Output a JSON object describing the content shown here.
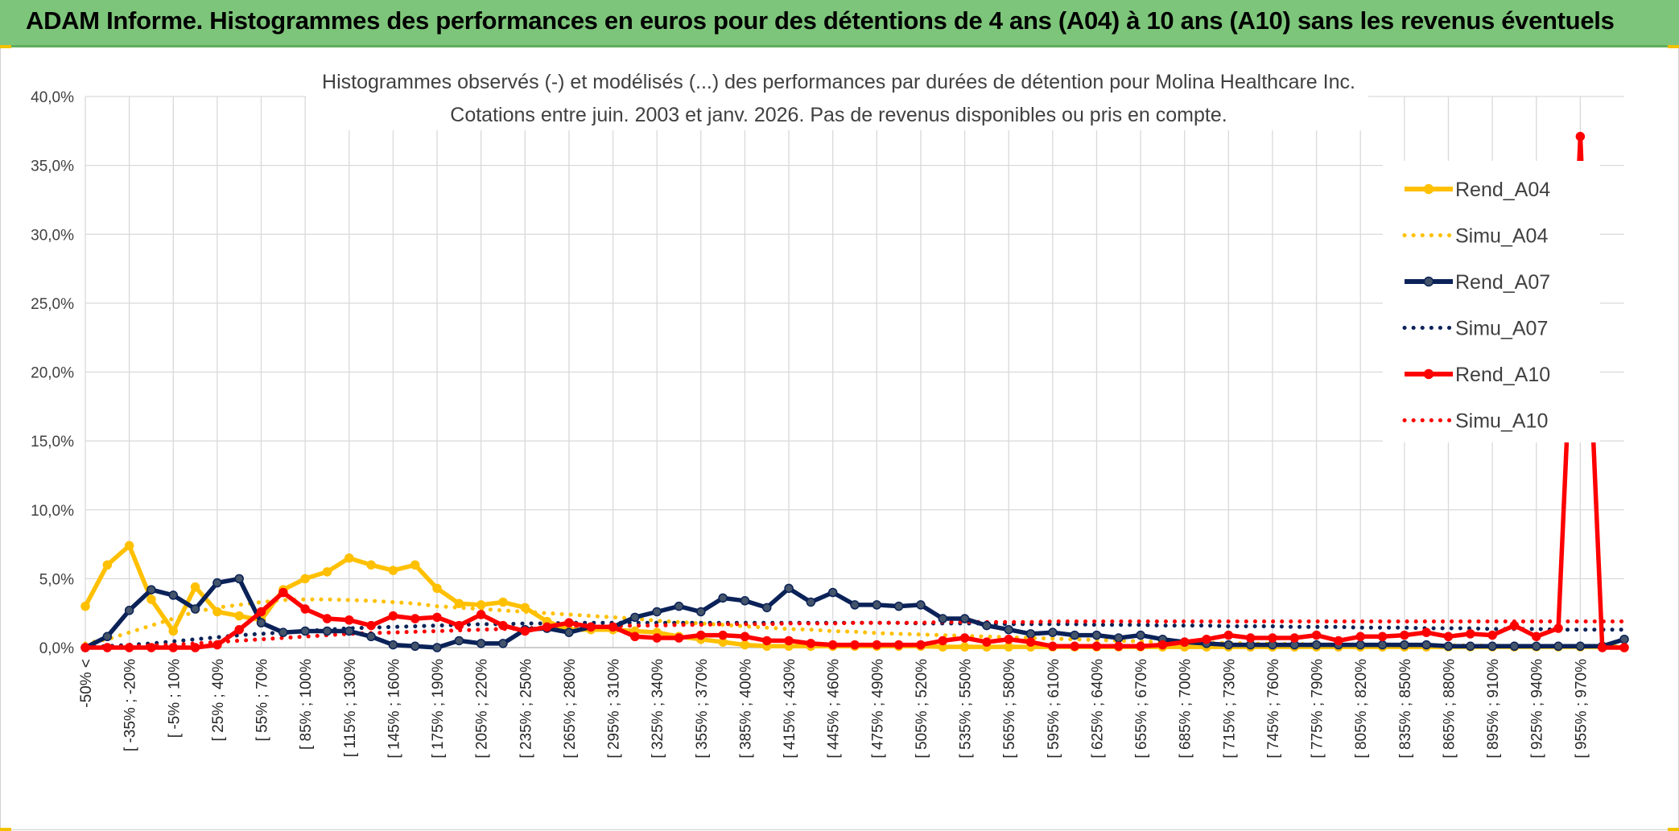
{
  "header": {
    "title": "ADAM Informe. Histogrammes des performances en euros pour des détentions de 4 ans (A04) à 10 ans (A10) sans les revenus éventuels",
    "background": "#7dc57a"
  },
  "chart_data": {
    "type": "line",
    "title_line1": "Histogrammes observés (-) et modélisés (...) des performances par durées de détention pour Molina Healthcare Inc.",
    "title_line2": "Cotations entre juin. 2003 et janv. 2026. Pas de revenus disponibles ou pris en compte.",
    "xlabel": "",
    "ylabel": "",
    "ylim": [
      0,
      40
    ],
    "y_ticks": [
      "0,0%",
      "5,0%",
      "10,0%",
      "15,0%",
      "20,0%",
      "25,0%",
      "30,0%",
      "35,0%",
      "40,0%"
    ],
    "x_labels": [
      "-50% <",
      "[ -35% ; -20%",
      "[ -5% ; 10%",
      "[ 25% ; 40%",
      "[ 55% ; 70%",
      "[ 85% ; 100%",
      "[ 115% ; 130%",
      "[ 145% ; 160%",
      "[ 175% ; 190%",
      "[ 205% ; 220%",
      "[ 235% ; 250%",
      "[ 265% ; 280%",
      "[ 295% ; 310%",
      "[ 325% ; 340%",
      "[ 355% ; 370%",
      "[ 385% ; 400%",
      "[ 415% ; 430%",
      "[ 445% ; 460%",
      "[ 475% ; 490%",
      "[ 505% ; 520%",
      "[ 535% ; 550%",
      "[ 565% ; 580%",
      "[ 595% ; 610%",
      "[ 625% ; 640%",
      "[ 655% ; 670%",
      "[ 685% ; 700%",
      "[ 715% ; 730%",
      "[ 745% ; 760%",
      "[ 775% ; 790%",
      "[ 805% ; 820%",
      "[ 835% ; 850%",
      "[ 865% ; 880%",
      "[ 895% ; 910%",
      "[ 925% ; 940%",
      "[ 955% ; 970%"
    ],
    "x_count": 71,
    "grid": true,
    "legend_position": "right",
    "series": [
      {
        "name": "Rend_A04",
        "color": "#ffc000",
        "style": "solid",
        "markers": true,
        "values": [
          3.0,
          6.0,
          7.4,
          3.5,
          1.2,
          4.4,
          2.6,
          2.3,
          2.0,
          4.2,
          5.0,
          5.5,
          6.5,
          6.0,
          5.6,
          6.0,
          4.3,
          3.2,
          3.1,
          3.3,
          2.9,
          1.9,
          1.3,
          1.3,
          1.3,
          1.2,
          1.1,
          0.8,
          0.6,
          0.4,
          0.2,
          0.1,
          0.1,
          0.1,
          0.1,
          0.1,
          0.1,
          0.1,
          0.1,
          0.05,
          0.05,
          0.05,
          0.05,
          0.05,
          0.05,
          0.05,
          0.05,
          0.05,
          0.05,
          0.05,
          0.05,
          0.05,
          0.05,
          0.05,
          0.05,
          0.05,
          0.05,
          0.05,
          0.05,
          0.05,
          0.05,
          0.05,
          0.05,
          0.05,
          0.05,
          0.05,
          0.05,
          0.05,
          0.05,
          0.05,
          0.0
        ]
      },
      {
        "name": "Simu_A04",
        "color": "#ffc000",
        "style": "dotted",
        "markers": false,
        "values": [
          0.3,
          0.6,
          1.1,
          1.6,
          2.1,
          2.6,
          2.9,
          3.1,
          3.3,
          3.45,
          3.5,
          3.5,
          3.45,
          3.4,
          3.3,
          3.2,
          3.0,
          2.9,
          2.8,
          2.7,
          2.6,
          2.5,
          2.4,
          2.3,
          2.2,
          2.1,
          1.95,
          1.85,
          1.75,
          1.65,
          1.55,
          1.45,
          1.35,
          1.3,
          1.2,
          1.15,
          1.05,
          1.0,
          0.95,
          0.9,
          0.85,
          0.8,
          0.75,
          0.7,
          0.65,
          0.6,
          0.55,
          0.5,
          0.45,
          0.4,
          0.38,
          0.35,
          0.33,
          0.3,
          0.28,
          0.26,
          0.24,
          0.22,
          0.2,
          0.19,
          0.18,
          0.17,
          0.16,
          0.15,
          0.14,
          0.13,
          0.12,
          0.11,
          0.1,
          0.1,
          0.1
        ]
      },
      {
        "name": "Rend_A07",
        "color": "#0b2258",
        "style": "solid",
        "markers": true,
        "values": [
          0.0,
          0.8,
          2.7,
          4.2,
          3.8,
          2.8,
          4.7,
          5.0,
          1.8,
          1.1,
          1.2,
          1.2,
          1.2,
          0.8,
          0.2,
          0.1,
          0.0,
          0.5,
          0.3,
          0.3,
          1.3,
          1.4,
          1.1,
          1.5,
          1.5,
          2.2,
          2.6,
          3.0,
          2.6,
          3.6,
          3.4,
          2.9,
          4.3,
          3.3,
          4.0,
          3.1,
          3.1,
          3.0,
          3.1,
          2.1,
          2.1,
          1.6,
          1.3,
          1.0,
          1.1,
          0.9,
          0.9,
          0.7,
          0.9,
          0.6,
          0.4,
          0.3,
          0.2,
          0.2,
          0.2,
          0.2,
          0.2,
          0.2,
          0.2,
          0.2,
          0.2,
          0.2,
          0.1,
          0.1,
          0.1,
          0.1,
          0.1,
          0.1,
          0.1,
          0.1,
          0.6
        ]
      },
      {
        "name": "Simu_A07",
        "color": "#0b2258",
        "style": "dotted",
        "markers": false,
        "values": [
          0.05,
          0.1,
          0.2,
          0.3,
          0.45,
          0.6,
          0.75,
          0.9,
          1.0,
          1.1,
          1.2,
          1.3,
          1.4,
          1.45,
          1.5,
          1.55,
          1.6,
          1.65,
          1.7,
          1.7,
          1.75,
          1.75,
          1.8,
          1.8,
          1.8,
          1.8,
          1.8,
          1.8,
          1.8,
          1.8,
          1.8,
          1.8,
          1.8,
          1.8,
          1.8,
          1.8,
          1.8,
          1.8,
          1.75,
          1.75,
          1.75,
          1.75,
          1.7,
          1.7,
          1.7,
          1.7,
          1.65,
          1.65,
          1.65,
          1.6,
          1.6,
          1.6,
          1.55,
          1.55,
          1.55,
          1.5,
          1.5,
          1.5,
          1.45,
          1.45,
          1.45,
          1.4,
          1.4,
          1.4,
          1.35,
          1.35,
          1.35,
          1.3,
          1.3,
          1.3,
          1.3
        ]
      },
      {
        "name": "Rend_A10",
        "color": "#ff0000",
        "style": "solid",
        "markers": true,
        "values": [
          0.0,
          0.0,
          0.0,
          0.0,
          0.0,
          0.0,
          0.2,
          1.3,
          2.6,
          4.0,
          2.8,
          2.1,
          2.0,
          1.6,
          2.3,
          2.1,
          2.2,
          1.6,
          2.4,
          1.6,
          1.2,
          1.5,
          1.8,
          1.5,
          1.5,
          0.8,
          0.7,
          0.7,
          0.9,
          0.9,
          0.8,
          0.5,
          0.5,
          0.3,
          0.2,
          0.2,
          0.2,
          0.2,
          0.2,
          0.5,
          0.7,
          0.4,
          0.6,
          0.4,
          0.1,
          0.1,
          0.1,
          0.1,
          0.1,
          0.2,
          0.4,
          0.6,
          0.9,
          0.7,
          0.7,
          0.7,
          0.9,
          0.5,
          0.8,
          0.8,
          0.9,
          1.1,
          0.8,
          1.0,
          0.9,
          1.6,
          0.8,
          1.4,
          37.1,
          0.0,
          0.0
        ]
      },
      {
        "name": "Simu_A10",
        "color": "#ff0000",
        "style": "dotted",
        "markers": false,
        "values": [
          0.02,
          0.05,
          0.1,
          0.15,
          0.2,
          0.3,
          0.4,
          0.5,
          0.6,
          0.7,
          0.8,
          0.9,
          1.0,
          1.05,
          1.1,
          1.15,
          1.2,
          1.25,
          1.3,
          1.35,
          1.4,
          1.45,
          1.5,
          1.5,
          1.55,
          1.6,
          1.6,
          1.65,
          1.65,
          1.7,
          1.7,
          1.7,
          1.75,
          1.75,
          1.75,
          1.8,
          1.8,
          1.8,
          1.8,
          1.85,
          1.85,
          1.85,
          1.85,
          1.85,
          1.9,
          1.9,
          1.9,
          1.9,
          1.9,
          1.9,
          1.9,
          1.9,
          1.9,
          1.9,
          1.9,
          1.9,
          1.9,
          1.9,
          1.9,
          1.9,
          1.9,
          1.9,
          1.9,
          1.9,
          1.9,
          1.9,
          1.9,
          1.9,
          1.9,
          1.9,
          1.9
        ]
      }
    ]
  }
}
